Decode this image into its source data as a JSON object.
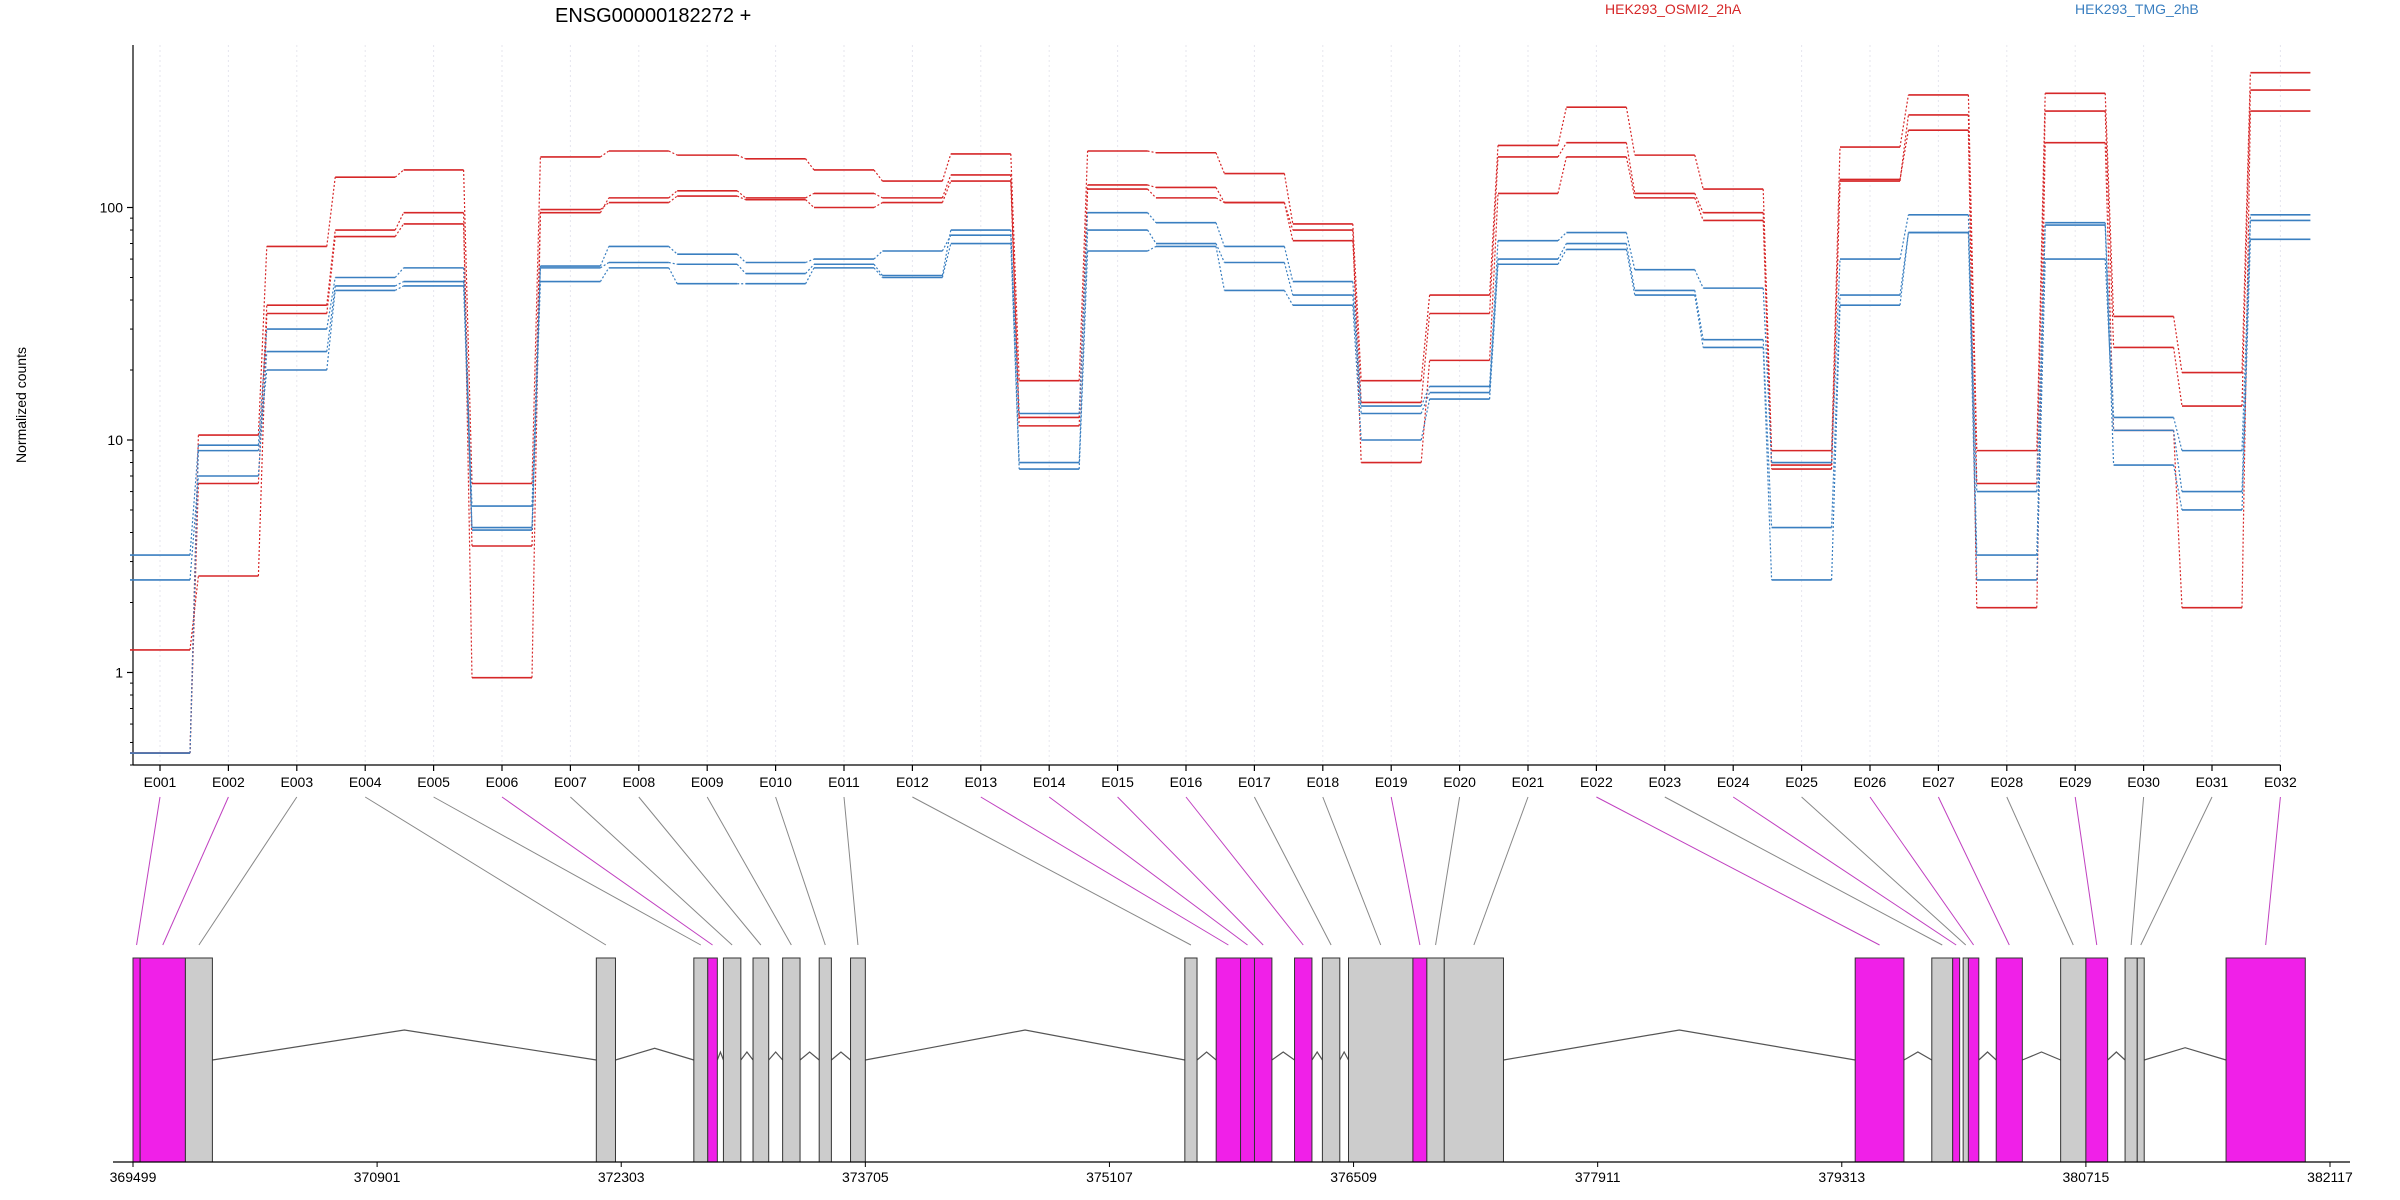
{
  "header": {
    "title": "ENSG00000182272 +",
    "legend": [
      {
        "label": "HEK293_OSMI2_2hA",
        "color": "#d62728"
      },
      {
        "label": "HEK293_TMG_2hB",
        "color": "#3a7fc0"
      }
    ]
  },
  "chart_data": {
    "type": "line",
    "title": "ENSG00000182272 +",
    "xlabel": "",
    "ylabel": "Normalized counts",
    "y_scale": "log",
    "ylim": [
      0.4,
      500
    ],
    "y_ticks": [
      1,
      10,
      100
    ],
    "grid": "vertical dotted lines at each exon",
    "legend_position": "top",
    "categories": [
      "E001",
      "E002",
      "E003",
      "E004",
      "E005",
      "E006",
      "E007",
      "E008",
      "E009",
      "E010",
      "E011",
      "E012",
      "E013",
      "E014",
      "E015",
      "E016",
      "E017",
      "E018",
      "E019",
      "E020",
      "E021",
      "E022",
      "E023",
      "E024",
      "E025",
      "E026",
      "E027",
      "E028",
      "E029",
      "E030",
      "E031",
      "E032"
    ],
    "series": [
      {
        "group": "HEK293_OSMI2_2hA",
        "color": "#d62728",
        "style": "solid",
        "values": [
          1.25,
          2.6,
          35,
          75,
          85,
          3.5,
          95,
          110,
          118,
          110,
          115,
          110,
          138,
          12.5,
          125,
          122,
          105,
          72,
          14.5,
          35,
          165,
          190,
          115,
          95,
          7.8,
          130,
          250,
          6.5,
          260,
          25,
          14,
          320
        ]
      },
      {
        "group": "HEK293_OSMI2_2hA",
        "color": "#d62728",
        "style": "dashed",
        "values": [
          0.45,
          10.5,
          68,
          135,
          145,
          6.5,
          165,
          175,
          168,
          162,
          145,
          130,
          170,
          18,
          175,
          172,
          140,
          85,
          18,
          42,
          185,
          270,
          168,
          120,
          9,
          182,
          305,
          9,
          310,
          34,
          19.5,
          380
        ]
      },
      {
        "group": "HEK293_OSMI2_2hA",
        "color": "#d62728",
        "style": "solid",
        "values": [
          0.45,
          6.5,
          38,
          80,
          95,
          0.95,
          98,
          105,
          112,
          108,
          100,
          105,
          130,
          11.5,
          120,
          110,
          105,
          80,
          8,
          22,
          115,
          165,
          110,
          88,
          7.5,
          132,
          215,
          1.9,
          190,
          11,
          1.9,
          260
        ]
      },
      {
        "group": "HEK293_TMG_2hB",
        "color": "#3a7fc0",
        "style": "solid",
        "values": [
          3.2,
          9.5,
          30,
          50,
          55,
          4.2,
          56,
          68,
          63,
          58,
          60,
          65,
          76,
          13,
          95,
          86,
          68,
          48,
          14,
          17,
          72,
          78,
          54,
          45,
          8,
          60,
          93,
          3.2,
          86,
          12.5,
          9,
          93
        ]
      },
      {
        "group": "HEK293_TMG_2hB",
        "color": "#3a7fc0",
        "style": "dashed",
        "values": [
          2.5,
          7,
          24,
          46,
          48,
          5.2,
          55,
          58,
          57,
          52,
          57,
          51,
          80,
          8,
          80,
          70,
          58,
          42,
          13,
          16,
          60,
          70,
          44,
          27,
          4.2,
          42,
          78,
          2.5,
          60,
          11,
          6,
          88
        ]
      },
      {
        "group": "HEK293_TMG_2hB",
        "color": "#3a7fc0",
        "style": "solid",
        "values": [
          0.45,
          9,
          20,
          44,
          46,
          4.1,
          48,
          55,
          47,
          47,
          55,
          50,
          70,
          7.5,
          65,
          68,
          44,
          38,
          10,
          15,
          57,
          66,
          42,
          25,
          2.5,
          38,
          78,
          6,
          84,
          7.8,
          5,
          73
        ]
      }
    ],
    "gene_model": {
      "genomic_ticks": [
        "369499",
        "370901",
        "372303",
        "373705",
        "375107",
        "376509",
        "377911",
        "379313",
        "380715",
        "382117"
      ],
      "genomic_range": [
        369499,
        382117
      ],
      "exons": [
        {
          "id": "E001",
          "start": 369499,
          "end": 369540,
          "highlight": true
        },
        {
          "id": "E002",
          "start": 369540,
          "end": 369800,
          "highlight": true
        },
        {
          "id": "E003",
          "start": 369800,
          "end": 369955,
          "highlight": false
        },
        {
          "id": "E004",
          "start": 372160,
          "end": 372270,
          "highlight": false
        },
        {
          "id": "E005",
          "start": 372720,
          "end": 372800,
          "highlight": false
        },
        {
          "id": "E006",
          "start": 372800,
          "end": 372855,
          "highlight": true
        },
        {
          "id": "E007",
          "start": 372890,
          "end": 372990,
          "highlight": false
        },
        {
          "id": "E008",
          "start": 373060,
          "end": 373150,
          "highlight": false
        },
        {
          "id": "E009",
          "start": 373230,
          "end": 373330,
          "highlight": false
        },
        {
          "id": "E010",
          "start": 373440,
          "end": 373510,
          "highlight": false
        },
        {
          "id": "E011",
          "start": 373620,
          "end": 373705,
          "highlight": false
        },
        {
          "id": "E012",
          "start": 375540,
          "end": 375610,
          "highlight": false
        },
        {
          "id": "E013",
          "start": 375720,
          "end": 375860,
          "highlight": true
        },
        {
          "id": "E014",
          "start": 375860,
          "end": 375940,
          "highlight": true
        },
        {
          "id": "E015",
          "start": 375940,
          "end": 376040,
          "highlight": true
        },
        {
          "id": "E016",
          "start": 376170,
          "end": 376270,
          "highlight": true
        },
        {
          "id": "E017",
          "start": 376330,
          "end": 376430,
          "highlight": false
        },
        {
          "id": "E018",
          "start": 376480,
          "end": 376850,
          "highlight": false
        },
        {
          "id": "E019",
          "start": 376850,
          "end": 376930,
          "highlight": true
        },
        {
          "id": "E020",
          "start": 376930,
          "end": 377030,
          "highlight": false
        },
        {
          "id": "E021",
          "start": 377030,
          "end": 377370,
          "highlight": false
        },
        {
          "id": "E022",
          "start": 379390,
          "end": 379670,
          "highlight": true
        },
        {
          "id": "E023",
          "start": 379830,
          "end": 379950,
          "highlight": false
        },
        {
          "id": "E024",
          "start": 379950,
          "end": 379990,
          "highlight": true
        },
        {
          "id": "E025",
          "start": 380010,
          "end": 380040,
          "highlight": false
        },
        {
          "id": "E026",
          "start": 380040,
          "end": 380100,
          "highlight": true
        },
        {
          "id": "E027",
          "start": 380200,
          "end": 380350,
          "highlight": true
        },
        {
          "id": "E028",
          "start": 380570,
          "end": 380715,
          "highlight": false
        },
        {
          "id": "E029",
          "start": 380715,
          "end": 380840,
          "highlight": true
        },
        {
          "id": "E030",
          "start": 380940,
          "end": 381010,
          "highlight": false
        },
        {
          "id": "E031",
          "start": 381010,
          "end": 381050,
          "highlight": false
        },
        {
          "id": "E032",
          "start": 381520,
          "end": 381975,
          "highlight": true
        }
      ],
      "colors": {
        "highlight": "#f020e8",
        "normal": "#cccccc",
        "line": "#555555"
      }
    }
  }
}
